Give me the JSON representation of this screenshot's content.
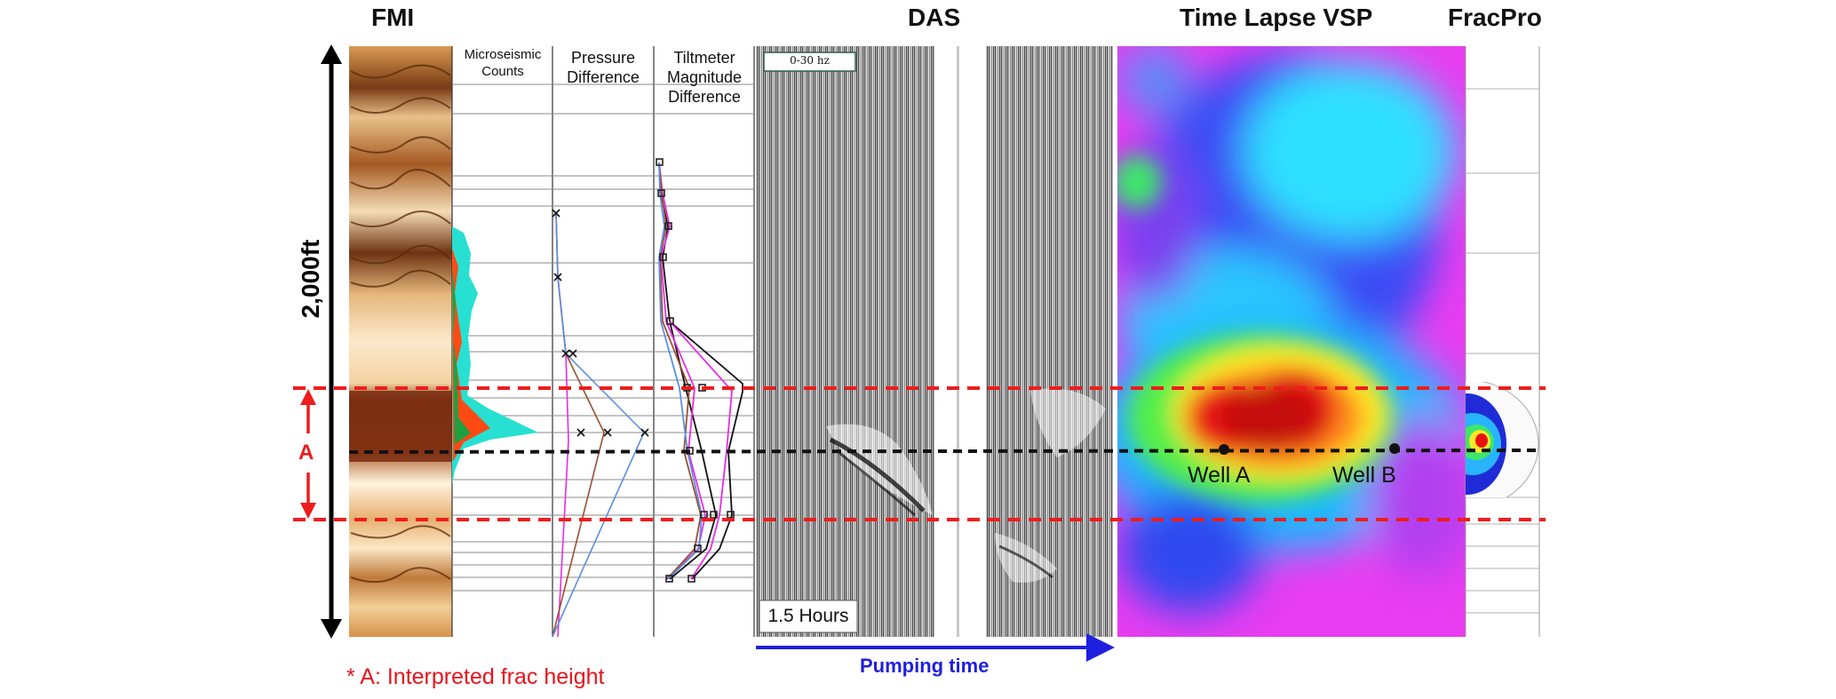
{
  "headers": {
    "fmi": "FMI",
    "das": "DAS",
    "vsp": "Time Lapse VSP",
    "fracpro": "FracPro"
  },
  "columns": {
    "microseismic": "Microseismic Counts",
    "pressure": "Pressure Difference",
    "tiltmeter": "Tiltmeter Magnitude Difference"
  },
  "scale_label": "2,000ft",
  "zone_label": "A",
  "das_filter_label": "0-30 hz",
  "das_duration": "1.5 Hours",
  "pumping_label": "Pumping time",
  "wells": {
    "a": "Well A",
    "b": "Well B"
  },
  "footnote": "* A: Interpreted frac height",
  "colors": {
    "zone_lines": "#ee1c1c",
    "pumping_arrow": "#1f1fe0",
    "footnote": "#e8141c",
    "scale_arrow": "#000000"
  }
}
